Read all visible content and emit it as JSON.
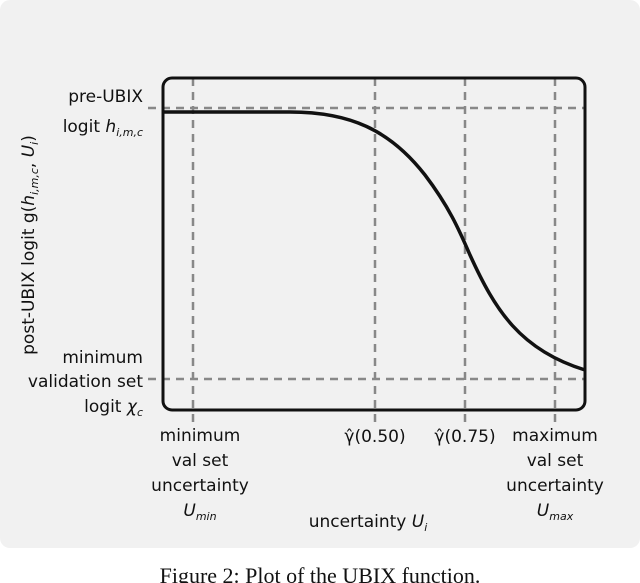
{
  "figure": {
    "y_labels": {
      "top_line1": "pre-UBIX",
      "top_line2": "logit ",
      "top_var": "h",
      "top_sub": "i,m,c",
      "bottom_line1": "minimum",
      "bottom_line2": "validation set",
      "bottom_line3": "logit ",
      "bottom_var": "χ",
      "bottom_sub": "c"
    },
    "x_labels": {
      "left": [
        "minimum",
        "val set",
        "uncertainty"
      ],
      "left_var": "U",
      "left_sub": "min",
      "mid1": "γ̂(0.50)",
      "mid2": "γ̂(0.75)",
      "right": [
        "maximum",
        "val set",
        "uncertainty"
      ],
      "right_var": "U",
      "right_sub": "max"
    },
    "x_title": "uncertainty ",
    "x_title_var": "U",
    "x_title_sub": "i",
    "y_title": "post-UBIX logit g(",
    "y_title_var": "h",
    "y_title_sub": "i,m,c",
    "y_title_mid": ", ",
    "y_title_var2": "U",
    "y_title_sub2": "i",
    "y_title_end": ")",
    "caption": "Figure 2: Plot of the UBIX function."
  }
}
